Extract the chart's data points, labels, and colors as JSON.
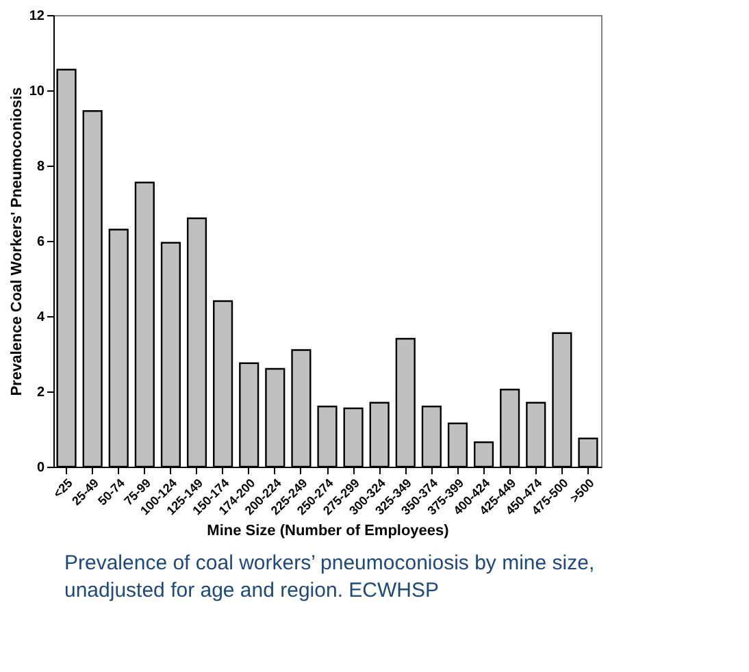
{
  "chart_data": {
    "type": "bar",
    "xlabel": "Mine Size (Number of Employees)",
    "ylabel": "Prevalence Coal Workers' Pneumoconiosis",
    "categories": [
      "<25",
      "25-49",
      "50-74",
      "75-99",
      "100-124",
      "125-149",
      "150-174",
      "174-200",
      "200-224",
      "225-249",
      "250-274",
      "275-299",
      "300-324",
      "325-349",
      "350-374",
      "375-399",
      "400-424",
      "425-449",
      "450-474",
      "475-500",
      ">500"
    ],
    "values": [
      10.55,
      9.45,
      6.3,
      7.55,
      5.95,
      6.6,
      4.4,
      2.75,
      2.6,
      3.1,
      1.6,
      1.55,
      1.7,
      3.4,
      1.6,
      1.15,
      0.65,
      2.05,
      1.7,
      3.55,
      0.75
    ],
    "color": "#c0c0c0",
    "ylim": [
      0,
      12
    ],
    "yticks": [
      0,
      2,
      4,
      6,
      8,
      10,
      12
    ],
    "grid": false,
    "annotations": [
      "Prevalence of coal workers’ pneumoconiosis by mine size, unadjusted for age and region. ECWHSP"
    ]
  }
}
